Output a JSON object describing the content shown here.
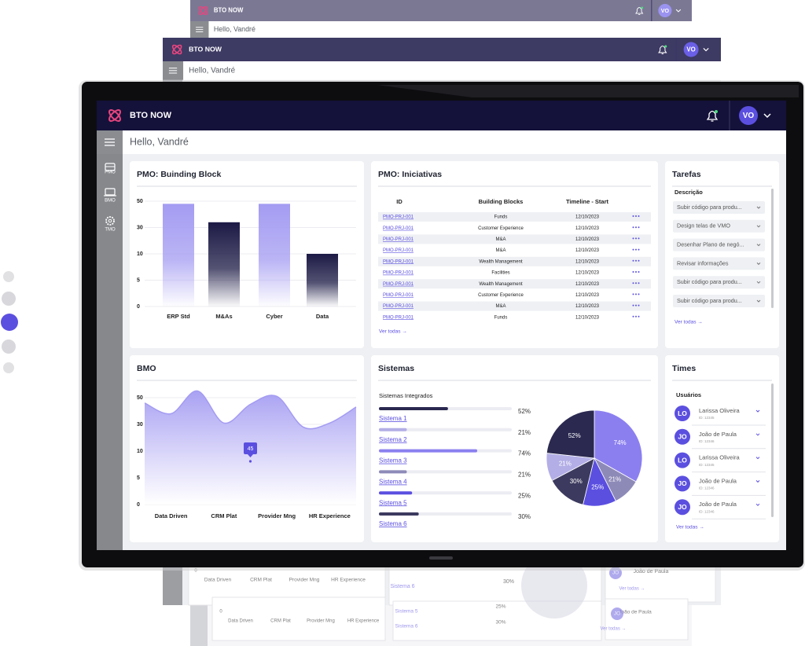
{
  "header": {
    "brand": "BTO NOW",
    "avatar": "VO",
    "greeting": "Hello, Vandré"
  },
  "sidebar": {
    "items": [
      "PMO",
      "BMO",
      "TMO"
    ]
  },
  "initiatives": {
    "title": "PMO: Iniciativas",
    "columns": [
      "ID",
      "Building Blocks",
      "Timeline - Start"
    ],
    "rows": [
      [
        "PMO-PRJ-001",
        "Funds",
        "12/10/2023"
      ],
      [
        "PMO-PRJ-001",
        "Customer Experience",
        "12/10/2023"
      ],
      [
        "PMO-PRJ-001",
        "M&A",
        "12/10/2023"
      ],
      [
        "PMO-PRJ-001",
        "M&A",
        "12/10/2023"
      ],
      [
        "PMO-PRJ-001",
        "Wealth Management",
        "12/10/2023"
      ],
      [
        "PMO-PRJ-001",
        "Facilities",
        "12/10/2023"
      ],
      [
        "PMO-PRJ-001",
        "Wealth Management",
        "12/10/2023"
      ],
      [
        "PMO-PRJ-001",
        "Customer Experience",
        "12/10/2023"
      ],
      [
        "PMO-PRJ-001",
        "M&A",
        "12/10/2023"
      ],
      [
        "PMO-PRJ-001",
        "Funds",
        "12/10/2023"
      ]
    ],
    "link": "Ver todas →"
  },
  "tasks": {
    "title": "Tarefas",
    "column": "Descrição",
    "items": [
      "Subir código para produ...",
      "Design telas de VMO",
      "Desenhar Plano de negó...",
      "Revisar informações",
      "Subir código para produ...",
      "Subir código para produ..."
    ],
    "link": "Ver todas →"
  },
  "team": {
    "title": "Times",
    "subtitle": "Usuários",
    "users": [
      {
        "initials": "LO",
        "name": "Larissa Oliveira",
        "id": "ID: 12345"
      },
      {
        "initials": "JO",
        "name": "João de Paula",
        "id": "ID: 12346"
      },
      {
        "initials": "LO",
        "name": "Larissa Oliveira",
        "id": "ID: 12345"
      },
      {
        "initials": "JO",
        "name": "João de Paula",
        "id": "ID: 12346"
      },
      {
        "initials": "JO",
        "name": "João de Paula",
        "id": "ID: 12346"
      }
    ],
    "link": "Ver todas →"
  },
  "chart_data": [
    {
      "type": "bar",
      "title": "PMO: Buinding Block",
      "categories": [
        "ERP Std",
        "M&As",
        "Cyber",
        "Data"
      ],
      "values": [
        48,
        34,
        48,
        10
      ],
      "colors": [
        "#a49cf2",
        "#1c1a45",
        "#a49cf2",
        "#1c1a45"
      ],
      "ylim": [
        0,
        50
      ],
      "yticks": [
        0,
        5,
        10,
        30,
        50
      ],
      "grid": true
    },
    {
      "type": "area",
      "title": "BMO",
      "categories": [
        null,
        "Data Driven",
        null,
        "CRM Plat",
        null,
        "Provider Mng",
        null,
        "HR Experience",
        null
      ],
      "values": [
        46,
        38,
        55,
        31,
        45,
        51,
        28,
        31,
        43
      ],
      "color": "#a49cf2",
      "ylim": [
        0,
        55
      ],
      "yticks": [
        0,
        5,
        10,
        30,
        50
      ],
      "grid": true
    },
    {
      "type": "pie",
      "title": "Sistemas",
      "subtitle": "Sistemas Integrados",
      "categories": [
        "Sistema 1",
        "Sistema 2",
        "Sistema 3",
        "Sistema 4",
        "Sistema 5",
        "Sistema 6"
      ],
      "values": [
        52,
        21,
        74,
        21,
        25,
        30
      ],
      "value_labels": [
        "52%",
        "21%",
        "74%",
        "21%",
        "25%",
        "30%"
      ],
      "colors": [
        "#2b2950",
        "#b3aee6",
        "#8b7ff0",
        "#8e8ab8",
        "#5b4fe0",
        "#3c3a5e"
      ]
    }
  ]
}
